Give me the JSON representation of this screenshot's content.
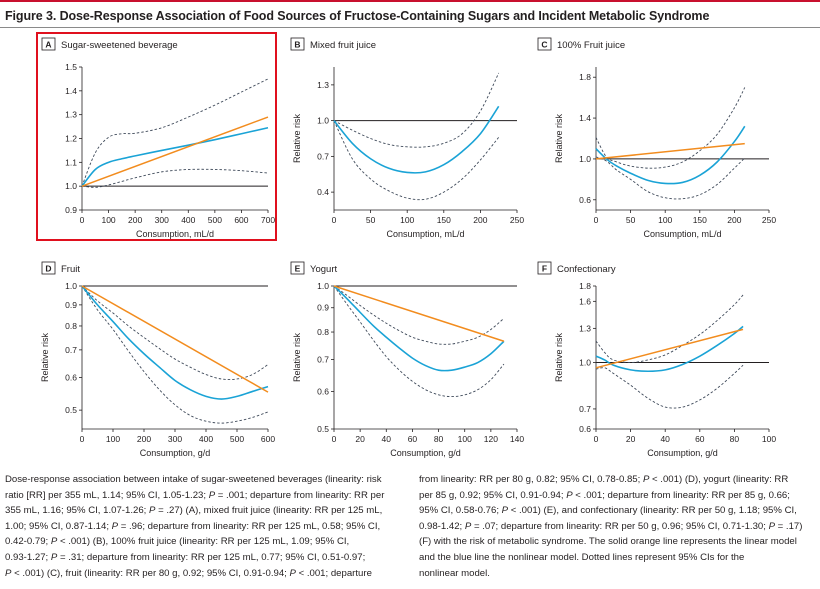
{
  "figure": {
    "title": "Figure 3. Dose-Response Association of Food Sources of Fructose-Containing Sugars and Incident Metabolic Syndrome"
  },
  "colors": {
    "linear": "#f28c1e",
    "nonlinear": "#1aa3d6",
    "ci": "#3f4a5a",
    "reference": "#231f20",
    "highlight": "#e0101e"
  },
  "chart_data": [
    {
      "letter": "A",
      "title": "Sugar-sweetened beverage",
      "type": "line",
      "xlabel": "Consumption, mL/d",
      "ylabel": "",
      "xlim": [
        0,
        700
      ],
      "ylim": [
        0.9,
        1.5
      ],
      "xticks": [
        0,
        100,
        200,
        300,
        400,
        500,
        600,
        700
      ],
      "yticks": [
        0.9,
        1.0,
        1.1,
        1.2,
        1.3,
        1.4,
        1.5
      ],
      "ytick_labels": [
        "0.9",
        "1.0",
        "1.1",
        "1.2",
        "1.3",
        "1.4",
        "1.5"
      ],
      "reference": 1.0,
      "highlighted": true,
      "series": [
        {
          "role": "linear",
          "x": [
            0,
            700
          ],
          "y": [
            1.0,
            1.29
          ]
        },
        {
          "role": "nonlinear",
          "x": [
            0,
            50,
            100,
            150,
            200,
            300,
            400,
            500,
            600,
            700
          ],
          "y": [
            1.0,
            1.07,
            1.1,
            1.115,
            1.127,
            1.15,
            1.172,
            1.195,
            1.22,
            1.245
          ]
        },
        {
          "role": "ci_upper",
          "x": [
            0,
            50,
            100,
            150,
            200,
            300,
            400,
            500,
            600,
            700
          ],
          "y": [
            1.0,
            1.14,
            1.205,
            1.22,
            1.222,
            1.245,
            1.29,
            1.34,
            1.395,
            1.45
          ]
        },
        {
          "role": "ci_lower",
          "x": [
            0,
            50,
            100,
            150,
            200,
            300,
            400,
            500,
            600,
            700
          ],
          "y": [
            1.0,
            0.995,
            1.005,
            1.02,
            1.035,
            1.06,
            1.07,
            1.07,
            1.065,
            1.055
          ]
        }
      ]
    },
    {
      "letter": "B",
      "title": "Mixed fruit juice",
      "type": "line",
      "xlabel": "Consumption, mL/d",
      "ylabel": "Relative risk",
      "xlim": [
        0,
        250
      ],
      "ylim": [
        0.25,
        1.45
      ],
      "xticks": [
        0,
        50,
        100,
        150,
        200,
        250
      ],
      "yticks": [
        0.4,
        0.7,
        1.0,
        1.3
      ],
      "ytick_labels": [
        "0.4",
        "0.7",
        "1.0",
        "1.3"
      ],
      "reference": 1.0,
      "highlighted": false,
      "series": [
        {
          "role": "nonlinear",
          "x": [
            0,
            25,
            50,
            75,
            100,
            125,
            150,
            175,
            200,
            225
          ],
          "y": [
            1.0,
            0.81,
            0.68,
            0.6,
            0.565,
            0.57,
            0.63,
            0.74,
            0.89,
            1.12
          ]
        },
        {
          "role": "ci_upper",
          "x": [
            0,
            25,
            50,
            75,
            100,
            125,
            150,
            175,
            200,
            225
          ],
          "y": [
            1.0,
            0.92,
            0.85,
            0.8,
            0.78,
            0.78,
            0.81,
            0.89,
            1.08,
            1.4
          ]
        },
        {
          "role": "ci_lower",
          "x": [
            0,
            25,
            50,
            75,
            100,
            125,
            150,
            175,
            200,
            225
          ],
          "y": [
            1.0,
            0.68,
            0.51,
            0.41,
            0.35,
            0.34,
            0.4,
            0.51,
            0.67,
            0.86
          ]
        }
      ]
    },
    {
      "letter": "C",
      "title": "100% Fruit juice",
      "type": "line",
      "xlabel": "Consumption, mL/d",
      "ylabel": "Relative risk",
      "xlim": [
        0,
        250
      ],
      "ylim": [
        0.5,
        1.9
      ],
      "xticks": [
        0,
        50,
        100,
        150,
        200,
        250
      ],
      "yticks": [
        0.6,
        1.0,
        1.4,
        1.8
      ],
      "ytick_labels": [
        "0.6",
        "1.0",
        "1.4",
        "1.8"
      ],
      "reference": 1.0,
      "highlighted": false,
      "series": [
        {
          "role": "linear",
          "x": [
            0,
            215
          ],
          "y": [
            1.0,
            1.15
          ]
        },
        {
          "role": "nonlinear",
          "x": [
            0,
            15,
            30,
            50,
            75,
            100,
            125,
            150,
            175,
            200,
            215
          ],
          "y": [
            1.1,
            1.0,
            0.93,
            0.86,
            0.79,
            0.76,
            0.77,
            0.84,
            0.97,
            1.17,
            1.32
          ]
        },
        {
          "role": "ci_upper",
          "x": [
            0,
            15,
            30,
            50,
            75,
            100,
            125,
            150,
            175,
            200,
            215
          ],
          "y": [
            1.21,
            1.02,
            0.97,
            0.93,
            0.91,
            0.92,
            0.97,
            1.08,
            1.24,
            1.5,
            1.7
          ]
        },
        {
          "role": "ci_lower",
          "x": [
            0,
            15,
            30,
            50,
            75,
            100,
            125,
            150,
            175,
            200,
            215
          ],
          "y": [
            1.02,
            0.98,
            0.89,
            0.8,
            0.68,
            0.62,
            0.61,
            0.65,
            0.75,
            0.91,
            1.01
          ]
        }
      ]
    },
    {
      "letter": "D",
      "title": "Fruit",
      "type": "line",
      "xlabel": "Consumption, g/d",
      "ylabel": "Relative risk",
      "xlim": [
        0,
        600
      ],
      "ylim": [
        0.45,
        1.0
      ],
      "xticks": [
        0,
        100,
        200,
        300,
        400,
        500,
        600
      ],
      "yticks": [
        0.5,
        0.6,
        0.7,
        0.8,
        0.9,
        1.0
      ],
      "ytick_labels": [
        "0.5",
        "0.6",
        "0.7",
        "0.8",
        "0.9",
        "1.0"
      ],
      "yscale": "log",
      "reference": 1.0,
      "highlighted": false,
      "series": [
        {
          "role": "linear",
          "x": [
            0,
            600
          ],
          "y": [
            1.0,
            0.553
          ]
        },
        {
          "role": "nonlinear",
          "x": [
            0,
            50,
            100,
            150,
            200,
            250,
            300,
            350,
            400,
            450,
            500,
            550,
            600
          ],
          "y": [
            1.0,
            0.9,
            0.82,
            0.745,
            0.685,
            0.635,
            0.59,
            0.56,
            0.54,
            0.532,
            0.54,
            0.555,
            0.57
          ]
        },
        {
          "role": "ci_upper",
          "x": [
            0,
            50,
            100,
            150,
            200,
            250,
            300,
            350,
            400,
            450,
            500,
            550,
            600
          ],
          "y": [
            1.0,
            0.92,
            0.86,
            0.8,
            0.75,
            0.705,
            0.665,
            0.635,
            0.61,
            0.595,
            0.595,
            0.61,
            0.645
          ]
        },
        {
          "role": "ci_lower",
          "x": [
            0,
            50,
            100,
            150,
            200,
            250,
            300,
            350,
            400,
            450,
            500,
            550,
            600
          ],
          "y": [
            1.0,
            0.875,
            0.785,
            0.695,
            0.62,
            0.56,
            0.515,
            0.485,
            0.47,
            0.465,
            0.47,
            0.48,
            0.495
          ]
        }
      ]
    },
    {
      "letter": "E",
      "title": "Yogurt",
      "type": "line",
      "xlabel": "Consumption, g/d",
      "ylabel": "Relative risk",
      "xlim": [
        0,
        140
      ],
      "ylim": [
        0.5,
        1.0
      ],
      "xticks": [
        0,
        20,
        40,
        60,
        80,
        100,
        120,
        140
      ],
      "yticks": [
        0.5,
        0.6,
        0.7,
        0.8,
        0.9,
        1.0
      ],
      "ytick_labels": [
        "0.5",
        "0.6",
        "0.7",
        "0.8",
        "0.9",
        "1.0"
      ],
      "yscale": "log",
      "reference": 1.0,
      "highlighted": false,
      "series": [
        {
          "role": "linear",
          "x": [
            0,
            130
          ],
          "y": [
            1.0,
            0.765
          ]
        },
        {
          "role": "nonlinear",
          "x": [
            0,
            10,
            20,
            30,
            40,
            50,
            60,
            70,
            80,
            90,
            100,
            110,
            120,
            130
          ],
          "y": [
            1.0,
            0.94,
            0.88,
            0.825,
            0.78,
            0.74,
            0.705,
            0.68,
            0.665,
            0.665,
            0.675,
            0.69,
            0.72,
            0.765
          ]
        },
        {
          "role": "ci_upper",
          "x": [
            0,
            10,
            20,
            30,
            40,
            50,
            60,
            70,
            80,
            90,
            100,
            110,
            120,
            130
          ],
          "y": [
            1.0,
            0.955,
            0.91,
            0.87,
            0.835,
            0.805,
            0.78,
            0.765,
            0.755,
            0.755,
            0.765,
            0.78,
            0.81,
            0.855
          ]
        },
        {
          "role": "ci_lower",
          "x": [
            0,
            10,
            20,
            30,
            40,
            50,
            60,
            70,
            80,
            90,
            100,
            110,
            120,
            130
          ],
          "y": [
            1.0,
            0.915,
            0.84,
            0.77,
            0.71,
            0.665,
            0.63,
            0.605,
            0.59,
            0.585,
            0.59,
            0.605,
            0.635,
            0.685
          ]
        }
      ]
    },
    {
      "letter": "F",
      "title": "Confectionary",
      "type": "line",
      "xlabel": "Consumption, g/d",
      "ylabel": "Relative risk",
      "xlim": [
        0,
        100
      ],
      "ylim": [
        0.6,
        1.8
      ],
      "xticks": [
        0,
        20,
        40,
        60,
        80,
        100
      ],
      "yticks": [
        0.6,
        0.7,
        1.0,
        1.3,
        1.6,
        1.8
      ],
      "ytick_labels": [
        "0.6",
        "0.7",
        "1.0",
        "1.3",
        "1.6",
        "1.8"
      ],
      "yscale": "log",
      "reference": 1.0,
      "highlighted": false,
      "series": [
        {
          "role": "linear",
          "x": [
            0,
            85
          ],
          "y": [
            0.96,
            1.29
          ]
        },
        {
          "role": "nonlinear",
          "x": [
            0,
            5,
            10,
            20,
            30,
            40,
            50,
            60,
            70,
            80,
            85
          ],
          "y": [
            1.05,
            1.02,
            0.98,
            0.945,
            0.935,
            0.945,
            0.985,
            1.05,
            1.14,
            1.25,
            1.32
          ]
        },
        {
          "role": "ci_upper",
          "x": [
            0,
            5,
            10,
            20,
            30,
            40,
            50,
            60,
            70,
            80,
            85
          ],
          "y": [
            1.18,
            1.08,
            1.02,
            1.0,
            1.02,
            1.06,
            1.14,
            1.24,
            1.38,
            1.56,
            1.68
          ]
        },
        {
          "role": "ci_lower",
          "x": [
            0,
            5,
            10,
            20,
            30,
            40,
            50,
            60,
            70,
            80,
            85
          ],
          "y": [
            0.95,
            0.96,
            0.92,
            0.84,
            0.76,
            0.71,
            0.71,
            0.75,
            0.82,
            0.92,
            0.98
          ]
        }
      ]
    }
  ],
  "caption": {
    "left": [
      [
        {
          "t": "Dose-response association between intake of sugar-sweetened beverages (linearity: risk"
        }
      ],
      [
        {
          "t": "ratio [RR] per 355 mL, 1.14; 95% CI, 1.05-1.23; "
        },
        {
          "t": "P",
          "i": true
        },
        {
          "t": " = .001; departure from linearity: RR per"
        }
      ],
      [
        {
          "t": "355 mL, 1.16; 95% CI, 1.07-1.26; "
        },
        {
          "t": "P",
          "i": true
        },
        {
          "t": " = .27) (A), mixed fruit juice (linearity: RR per 125 mL,"
        }
      ],
      [
        {
          "t": "1.00; 95% CI, 0.87-1.14; "
        },
        {
          "t": "P",
          "i": true
        },
        {
          "t": " = .96; departure from linearity: RR per 125 mL, 0.58; 95% CI,"
        }
      ],
      [
        {
          "t": "0.42-0.79; "
        },
        {
          "t": "P",
          "i": true
        },
        {
          "t": " < .001) (B), 100% fruit juice (linearity: RR per 125 mL, 1.09; 95% CI,"
        }
      ],
      [
        {
          "t": "0.93-1.27; "
        },
        {
          "t": "P",
          "i": true
        },
        {
          "t": " = .31; departure from linearity: RR per 125 mL, 0.77; 95% CI, 0.51-0.97;"
        }
      ],
      [
        {
          "t": "P",
          "i": true
        },
        {
          "t": " < .001) (C), fruit (linearity: RR per 80 g, 0.92; 95% CI, 0.91-0.94; "
        },
        {
          "t": "P",
          "i": true
        },
        {
          "t": " < .001; departure"
        }
      ]
    ],
    "right": [
      [
        {
          "t": "from linearity: RR per 80 g, 0.82; 95% CI, 0.78-0.85; "
        },
        {
          "t": "P",
          "i": true
        },
        {
          "t": " < .001) (D), yogurt (linearity: RR"
        }
      ],
      [
        {
          "t": "per 85 g, 0.92; 95% CI, 0.91-0.94; "
        },
        {
          "t": "P",
          "i": true
        },
        {
          "t": " < .001; departure from linearity: RR per 85 g, 0.66;"
        }
      ],
      [
        {
          "t": "95% CI, 0.58-0.76; "
        },
        {
          "t": "P",
          "i": true
        },
        {
          "t": " < .001) (E), and confectionary (linearity: RR per 50 g, 1.18; 95% CI,"
        }
      ],
      [
        {
          "t": "0.98-1.42; "
        },
        {
          "t": "P",
          "i": true
        },
        {
          "t": " = .07; departure from linearity: RR per 50 g, 0.96; 95% CI, 0.71-1.30; "
        },
        {
          "t": "P",
          "i": true
        },
        {
          "t": " = .17)"
        }
      ],
      [
        {
          "t": "(F) with the risk of metabolic syndrome. The solid orange line represents the linear model"
        }
      ],
      [
        {
          "t": "and the blue line the nonlinear model. Dotted lines represent 95% CIs for the"
        }
      ],
      [
        {
          "t": "nonlinear model."
        }
      ]
    ]
  }
}
